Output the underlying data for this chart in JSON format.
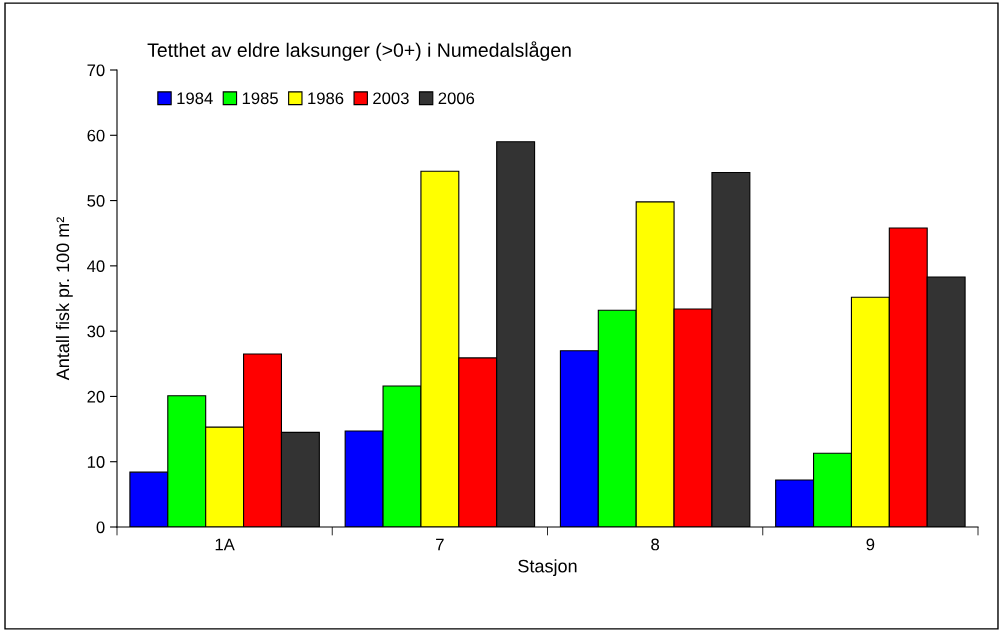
{
  "chart_data": {
    "type": "bar",
    "title": "Tetthet av eldre laksunger (>0+) i Numedalslågen",
    "xlabel": "Stasjon",
    "ylabel": "Antall fisk pr. 100 m²",
    "categories": [
      "1A",
      "7",
      "8",
      "9"
    ],
    "series": [
      {
        "name": "1984",
        "color": "#0000ff",
        "values": [
          8.4,
          14.7,
          27.0,
          7.2
        ]
      },
      {
        "name": "1985",
        "color": "#00ff00",
        "values": [
          20.1,
          21.6,
          33.2,
          11.3
        ]
      },
      {
        "name": "1986",
        "color": "#ffff00",
        "values": [
          15.3,
          54.5,
          49.8,
          35.2
        ]
      },
      {
        "name": "2003",
        "color": "#ff0000",
        "values": [
          26.5,
          25.9,
          33.4,
          45.8
        ]
      },
      {
        "name": "2006",
        "color": "#333333",
        "values": [
          14.5,
          59.0,
          54.3,
          38.3
        ]
      }
    ],
    "ylim": [
      0,
      70
    ],
    "yticks": [
      0,
      10,
      20,
      30,
      40,
      50,
      60,
      70
    ],
    "grid": false,
    "legend": "top left"
  }
}
